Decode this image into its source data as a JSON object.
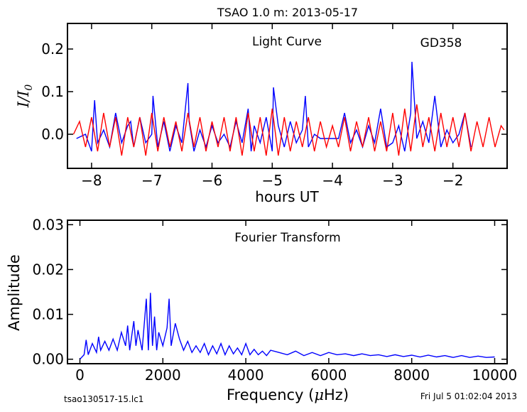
{
  "title": "TSAO 1.0 m:  2013-05-17",
  "footer": {
    "filename": "tsao130517-15.lc1",
    "timestamp": "Fri Jul  5 01:02:04 2013"
  },
  "chart_data": [
    {
      "type": "line",
      "title": "Light Curve",
      "annotation": "GD358",
      "xlabel": "hours UT",
      "ylabel": "I/I_0",
      "xlim": [
        -8.4,
        -1.1
      ],
      "ylim": [
        -0.08,
        0.26
      ],
      "xticks": [
        -8,
        -7,
        -6,
        -5,
        -4,
        -3,
        -2
      ],
      "yticks": [
        0.0,
        0.1,
        0.2
      ],
      "xtick_labels": [
        "−8",
        "−7",
        "−6",
        "−5",
        "−4",
        "−3",
        "−2"
      ],
      "ytick_labels": [
        "0.0",
        "0.1",
        "0.2"
      ],
      "series": [
        {
          "color": "#0000ff",
          "x": [
            -8.25,
            -8.1,
            -8.0,
            -7.95,
            -7.9,
            -7.8,
            -7.7,
            -7.6,
            -7.5,
            -7.4,
            -7.35,
            -7.3,
            -7.2,
            -7.1,
            -7.0,
            -6.98,
            -6.9,
            -6.8,
            -6.7,
            -6.6,
            -6.5,
            -6.4,
            -6.38,
            -6.3,
            -6.2,
            -6.1,
            -6.0,
            -5.9,
            -5.8,
            -5.7,
            -5.6,
            -5.5,
            -5.4,
            -5.35,
            -5.3,
            -5.2,
            -5.1,
            -5.0,
            -4.98,
            -4.9,
            -4.8,
            -4.7,
            -4.6,
            -4.5,
            -4.45,
            -4.4,
            -4.3,
            -4.2,
            -4.1,
            -4.0,
            -3.9,
            -3.8,
            -3.7,
            -3.6,
            -3.5,
            -3.4,
            -3.3,
            -3.2,
            -3.1,
            -3.0,
            -2.9,
            -2.8,
            -2.7,
            -2.68,
            -2.6,
            -2.5,
            -2.4,
            -2.3,
            -2.2,
            -2.1,
            -2.0,
            -1.9,
            -1.8,
            -1.7
          ],
          "y": [
            -0.01,
            0.0,
            -0.04,
            0.08,
            -0.02,
            0.01,
            -0.03,
            0.05,
            -0.02,
            0.02,
            0.03,
            -0.03,
            0.04,
            -0.02,
            0.0,
            0.09,
            -0.03,
            0.03,
            -0.04,
            0.02,
            -0.02,
            0.12,
            0.03,
            -0.04,
            0.01,
            -0.03,
            0.02,
            -0.02,
            0.0,
            -0.03,
            0.03,
            -0.02,
            0.06,
            -0.04,
            0.02,
            -0.02,
            0.04,
            -0.04,
            0.11,
            0.02,
            -0.03,
            0.03,
            -0.02,
            0.01,
            0.09,
            -0.03,
            0.0,
            -0.01,
            -0.01,
            -0.01,
            -0.01,
            0.05,
            -0.02,
            0.01,
            -0.03,
            0.02,
            -0.02,
            0.06,
            -0.03,
            -0.02,
            0.02,
            -0.04,
            0.05,
            0.17,
            -0.01,
            0.03,
            -0.02,
            0.09,
            -0.03,
            0.01,
            -0.02,
            0.0,
            0.05,
            -0.03
          ]
        },
        {
          "color": "#ff0000",
          "x": [
            -8.3,
            -8.2,
            -8.1,
            -8.0,
            -7.9,
            -7.8,
            -7.7,
            -7.6,
            -7.5,
            -7.4,
            -7.3,
            -7.2,
            -7.1,
            -7.0,
            -6.9,
            -6.8,
            -6.7,
            -6.6,
            -6.5,
            -6.4,
            -6.3,
            -6.2,
            -6.1,
            -6.0,
            -5.9,
            -5.8,
            -5.7,
            -5.6,
            -5.5,
            -5.4,
            -5.3,
            -5.2,
            -5.1,
            -5.0,
            -4.9,
            -4.8,
            -4.7,
            -4.6,
            -4.5,
            -4.4,
            -4.3,
            -4.2,
            -4.1,
            -4.0,
            -3.9,
            -3.8,
            -3.7,
            -3.6,
            -3.5,
            -3.4,
            -3.3,
            -3.2,
            -3.1,
            -3.0,
            -2.9,
            -2.8,
            -2.7,
            -2.6,
            -2.5,
            -2.4,
            -2.3,
            -2.2,
            -2.1,
            -2.0,
            -1.9,
            -1.8,
            -1.7,
            -1.6,
            -1.5,
            -1.4,
            -1.3,
            -1.2,
            -1.15
          ],
          "y": [
            0.0,
            0.03,
            -0.03,
            0.04,
            -0.04,
            0.05,
            -0.03,
            0.04,
            -0.05,
            0.04,
            -0.03,
            0.04,
            -0.05,
            0.05,
            -0.04,
            0.04,
            -0.03,
            0.03,
            -0.04,
            0.05,
            -0.03,
            0.04,
            -0.04,
            0.03,
            -0.03,
            0.04,
            -0.04,
            0.04,
            -0.05,
            0.05,
            -0.04,
            0.04,
            -0.05,
            0.06,
            -0.05,
            0.04,
            -0.04,
            0.03,
            -0.03,
            0.04,
            -0.04,
            0.03,
            -0.03,
            0.02,
            -0.03,
            0.04,
            -0.04,
            0.03,
            -0.03,
            0.04,
            -0.04,
            0.03,
            -0.04,
            0.05,
            -0.05,
            0.06,
            -0.04,
            0.07,
            -0.03,
            0.04,
            -0.04,
            0.05,
            -0.03,
            0.04,
            -0.03,
            0.05,
            -0.04,
            0.03,
            -0.03,
            0.04,
            -0.03,
            0.02,
            0.01
          ]
        }
      ]
    },
    {
      "type": "line",
      "title": "Fourier Transform",
      "xlabel": "Frequency (μHz)",
      "ylabel": "Amplitude",
      "xlim": [
        -300,
        10300
      ],
      "ylim": [
        -0.001,
        0.031
      ],
      "xticks": [
        0,
        2000,
        4000,
        6000,
        8000,
        10000
      ],
      "yticks": [
        0.0,
        0.01,
        0.02,
        0.03
      ],
      "xtick_labels": [
        "0",
        "2000",
        "4000",
        "6000",
        "8000",
        "10000"
      ],
      "ytick_labels": [
        "0.00",
        "0.01",
        "0.02",
        "0.03"
      ],
      "series": [
        {
          "color": "#0000ff",
          "x": [
            0,
            100,
            150,
            200,
            300,
            400,
            450,
            500,
            600,
            700,
            800,
            900,
            1000,
            1100,
            1150,
            1200,
            1300,
            1350,
            1400,
            1500,
            1600,
            1650,
            1700,
            1750,
            1800,
            1850,
            1900,
            2000,
            2100,
            2150,
            2200,
            2300,
            2400,
            2500,
            2600,
            2700,
            2800,
            2900,
            3000,
            3100,
            3200,
            3300,
            3400,
            3500,
            3600,
            3700,
            3800,
            3900,
            4000,
            4100,
            4200,
            4300,
            4400,
            4500,
            4600,
            4800,
            5000,
            5200,
            5400,
            5600,
            5800,
            6000,
            6200,
            6400,
            6600,
            6800,
            7000,
            7200,
            7400,
            7600,
            7800,
            8000,
            8200,
            8400,
            8600,
            8800,
            9000,
            9200,
            9400,
            9600,
            9800,
            10000
          ],
          "y": [
            0.0,
            0.001,
            0.0043,
            0.001,
            0.0035,
            0.0015,
            0.005,
            0.002,
            0.004,
            0.002,
            0.0045,
            0.002,
            0.006,
            0.003,
            0.0075,
            0.002,
            0.0085,
            0.003,
            0.0065,
            0.002,
            0.0135,
            0.002,
            0.0148,
            0.003,
            0.0095,
            0.002,
            0.006,
            0.003,
            0.007,
            0.0135,
            0.003,
            0.008,
            0.0045,
            0.002,
            0.004,
            0.0015,
            0.003,
            0.0015,
            0.0035,
            0.001,
            0.003,
            0.0012,
            0.0035,
            0.001,
            0.003,
            0.0012,
            0.0025,
            0.001,
            0.0035,
            0.001,
            0.0022,
            0.001,
            0.0018,
            0.0008,
            0.002,
            0.0015,
            0.001,
            0.0018,
            0.0008,
            0.0015,
            0.0008,
            0.0015,
            0.001,
            0.0012,
            0.0008,
            0.0012,
            0.0008,
            0.001,
            0.0006,
            0.001,
            0.0006,
            0.0009,
            0.0005,
            0.0009,
            0.0005,
            0.0008,
            0.0004,
            0.0008,
            0.0004,
            0.0007,
            0.0004,
            0.0005
          ]
        }
      ]
    }
  ]
}
